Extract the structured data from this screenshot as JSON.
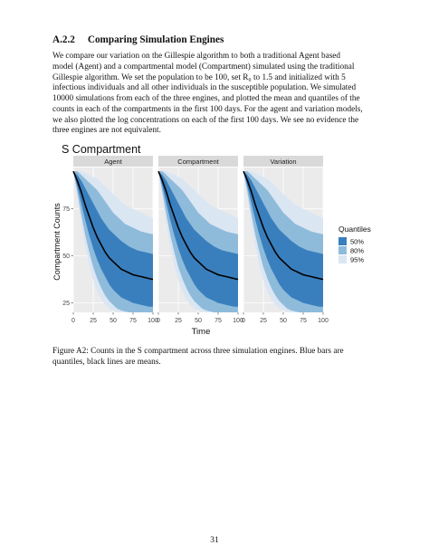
{
  "section": {
    "number": "A.2.2",
    "title": "Comparing Simulation Engines"
  },
  "paragraph_lines": [
    "We compare our variation on the Gillespie algorithm to both a traditional Agent based",
    "model (Agent) and a compartmental model (Compartment) simulated using the traditional",
    "Gillespie algorithm.  We set the population to be 100, set R₀ to 1.5 and initialized with 5",
    "infectious individuals and all other individuals in the susceptible population.  We simulated",
    "10000 simulations from each of the three engines, and plotted the mean and quantiles of the",
    "counts in each of the compartments in the first 100 days.  For the agent and variation models,",
    "we also plotted the log concentrations on each of the first 100 days.  We see no evidence the",
    "three engines are not equivalent."
  ],
  "caption_lines": [
    "Figure A2:  Counts in the S compartment across three simulation engines.  Blue bars are",
    "quantiles, black lines are means."
  ],
  "page_number": "31",
  "colors": {
    "q95": "#dbe6f3",
    "q80": "#8fbbdb",
    "q50": "#3a7fbd",
    "mean": "#000000",
    "panel_bg": "#ebebeb",
    "strip_bg": "#d9d9d9"
  },
  "chart_data": {
    "type": "area",
    "title": "S Compartment",
    "xlabel": "Time",
    "ylabel": "Compartment Counts",
    "facets": [
      "Agent",
      "Compartment",
      "Variation"
    ],
    "xlim": [
      0,
      100
    ],
    "ylim": [
      20,
      97
    ],
    "x_ticks": [
      0,
      25,
      50,
      75,
      100
    ],
    "y_ticks": [
      25,
      50,
      75
    ],
    "grid": true,
    "legend": {
      "title": "Quantiles",
      "placement": "right",
      "entries": [
        "50%",
        "80%",
        "95%"
      ]
    },
    "x": [
      0,
      5,
      10,
      15,
      20,
      25,
      30,
      35,
      40,
      45,
      50,
      55,
      60,
      65,
      70,
      75,
      80,
      85,
      90,
      95,
      100
    ],
    "series": [
      {
        "name": "mean",
        "values": [
          95,
          90,
          84,
          77,
          71,
          65,
          60,
          56,
          52,
          49,
          47,
          45,
          43,
          42,
          41,
          40,
          39.5,
          39,
          38.5,
          38,
          37.5
        ]
      },
      {
        "name": "50%",
        "lower": [
          95,
          87,
          78,
          69,
          61,
          54,
          48,
          43,
          39,
          35,
          32,
          30,
          28,
          27,
          26,
          25,
          24.5,
          24,
          23.5,
          23,
          23
        ],
        "upper": [
          95,
          93,
          90,
          86,
          82,
          78,
          74,
          70,
          67,
          64,
          62,
          60,
          58,
          56.5,
          55,
          54,
          53,
          52.5,
          52,
          51.5,
          51
        ]
      },
      {
        "name": "80%",
        "lower": [
          95,
          84,
          72,
          61,
          52,
          44,
          38,
          33,
          29,
          26,
          24,
          22,
          21,
          20.5,
          20,
          20,
          20,
          20,
          20,
          20,
          20
        ],
        "upper": [
          95,
          95,
          93,
          91,
          89,
          87,
          85,
          82,
          79,
          76,
          73,
          71,
          69,
          67,
          66,
          65,
          64,
          63,
          62.5,
          62,
          61.5
        ]
      },
      {
        "name": "95%",
        "lower": [
          95,
          81,
          67,
          55,
          45,
          37,
          31,
          27,
          24,
          22,
          21,
          20.5,
          20,
          20,
          20,
          20,
          20,
          20,
          20,
          20,
          20
        ],
        "upper": [
          95,
          95,
          95,
          94,
          93,
          92,
          91,
          89,
          87,
          85,
          83,
          81,
          79,
          77,
          76,
          75,
          74,
          73,
          72,
          71,
          70
        ]
      }
    ]
  }
}
